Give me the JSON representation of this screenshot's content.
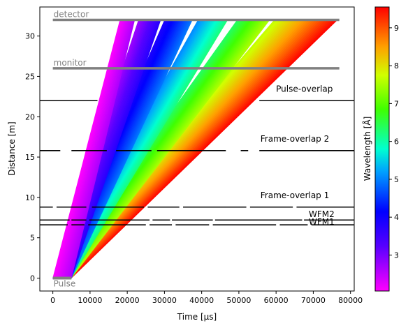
{
  "chart_data": {
    "type": "line",
    "title": "",
    "xlabel": "Time [µs]",
    "ylabel": "Distance [m]",
    "xlim": [
      -3500,
      81000
    ],
    "ylim": [
      -1.6,
      33.6
    ],
    "xticks": [
      0,
      10000,
      20000,
      30000,
      40000,
      50000,
      60000,
      70000,
      80000
    ],
    "yticks": [
      0,
      5,
      10,
      15,
      20,
      25,
      30
    ],
    "grid": false,
    "legend": "none",
    "colorbar": {
      "label": "Wavelength [Å]",
      "range": [
        2.05,
        9.55
      ],
      "ticks": [
        3,
        4,
        5,
        6,
        7,
        8,
        9
      ],
      "colormap": "gist_rainbow_r"
    },
    "pulse": {
      "label": "Pulse",
      "t_start": 0,
      "t_end": 5000,
      "distance": 0
    },
    "detectors": [
      {
        "label": "detector",
        "distance": 32,
        "t_start": 0,
        "t_end": 77000,
        "color": "#808080"
      },
      {
        "label": "monitor",
        "distance": 26,
        "t_start": 0,
        "t_end": 77000,
        "color": "#808080"
      }
    ],
    "choppers": [
      {
        "label": "Pulse-overlap",
        "distance": 22.0,
        "openings": [
          [
            12000,
            55500
          ]
        ]
      },
      {
        "label": "Frame-overlap 2",
        "distance": 15.8,
        "openings": [
          [
            2000,
            5000
          ],
          [
            14500,
            17000
          ],
          [
            26500,
            28000
          ],
          [
            46500,
            50500
          ],
          [
            52500,
            55500
          ]
        ]
      },
      {
        "label": "Frame-overlap 1",
        "distance": 8.8,
        "openings": [
          [
            0,
            1000
          ],
          [
            9000,
            10500
          ],
          [
            24500,
            25500
          ],
          [
            34000,
            35000
          ],
          [
            52000,
            53000
          ],
          [
            64500,
            65500
          ]
        ]
      },
      {
        "label": "WFM2",
        "distance": 7.2,
        "openings": [
          [
            4500,
            5000
          ],
          [
            9000,
            9800
          ],
          [
            26000,
            26800
          ],
          [
            31500,
            32000
          ],
          [
            43000,
            43600
          ],
          [
            67000,
            67500
          ]
        ]
      },
      {
        "label": "WFM1",
        "distance": 6.6,
        "openings": [
          [
            4000,
            5000
          ],
          [
            8500,
            9500
          ],
          [
            25000,
            26000
          ],
          [
            32000,
            33000
          ],
          [
            42000,
            43000
          ],
          [
            60000,
            61000
          ],
          [
            68500,
            69500
          ]
        ]
      }
    ],
    "frames": [
      {
        "wl_start": 9.55,
        "wl_end": 7.65,
        "top_t0": 76500,
        "top_t1": 59500
      },
      {
        "wl_start": 7.55,
        "wl_end": 6.35,
        "top_t0": 58300,
        "top_t1": 49500
      },
      {
        "wl_start": 6.25,
        "wl_end": 5.05,
        "top_t0": 47000,
        "top_t1": 39000
      },
      {
        "wl_start": 4.95,
        "wl_end": 3.85,
        "top_t0": 37500,
        "top_t1": 30000
      },
      {
        "wl_start": 3.75,
        "wl_end": 2.75,
        "top_t0": 29000,
        "top_t1": 23000
      },
      {
        "wl_start": 2.65,
        "wl_end": 2.05,
        "top_t0": 22000,
        "top_t1": 18000
      }
    ]
  }
}
